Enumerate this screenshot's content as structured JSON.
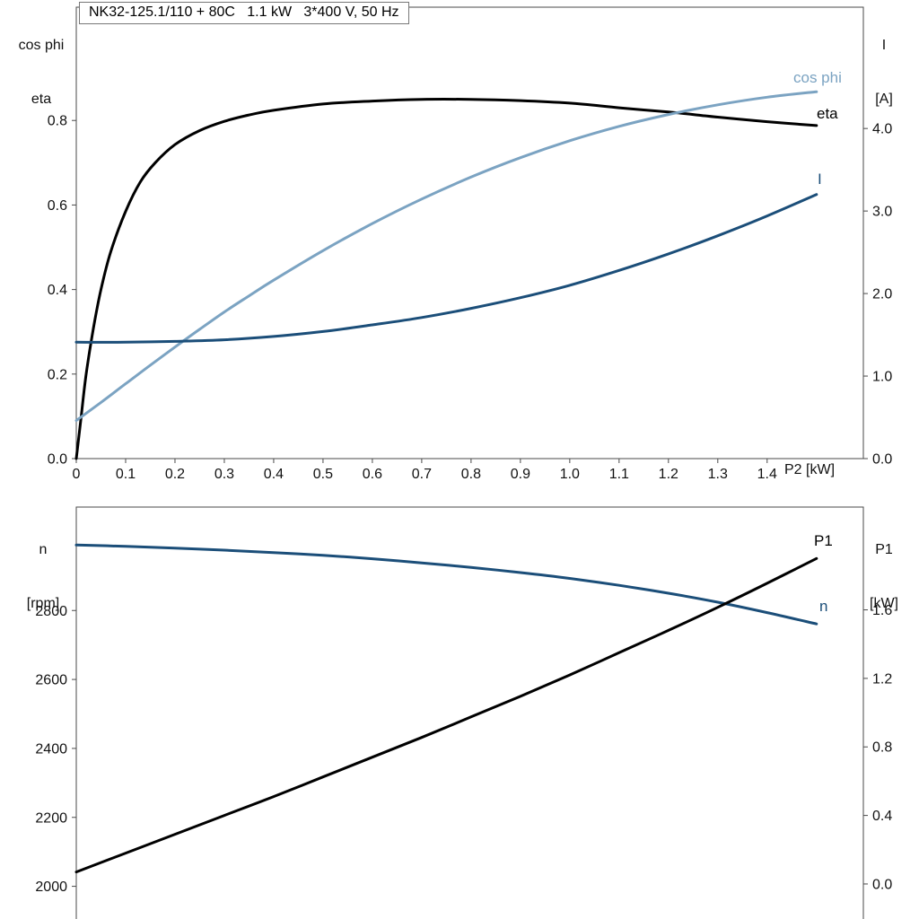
{
  "header": {
    "model_title": "NK32-125.1/110 + 80C   1.1 kW   3*400 V, 50 Hz"
  },
  "colors": {
    "black": "#000000",
    "dark_blue": "#1b4e79",
    "light_blue": "#7ba3c2",
    "frame": "#4a4a4a"
  },
  "chart_data": [
    {
      "type": "line",
      "name": "motor-electrical",
      "title": "",
      "grid": false,
      "legend_position": "curve-end-labels",
      "x_axis": {
        "label": "P2 [kW]",
        "range": [
          0,
          1.595
        ],
        "ticks": [
          {
            "v": 0,
            "label": "0"
          },
          {
            "v": 0.1,
            "label": "0.1"
          },
          {
            "v": 0.2,
            "label": "0.2"
          },
          {
            "v": 0.3,
            "label": "0.3"
          },
          {
            "v": 0.4,
            "label": "0.4"
          },
          {
            "v": 0.5,
            "label": "0.5"
          },
          {
            "v": 0.6,
            "label": "0.6"
          },
          {
            "v": 0.7,
            "label": "0.7"
          },
          {
            "v": 0.8,
            "label": "0.8"
          },
          {
            "v": 0.9,
            "label": "0.9"
          },
          {
            "v": 1.0,
            "label": "1.0"
          },
          {
            "v": 1.1,
            "label": "1.1"
          },
          {
            "v": 1.2,
            "label": "1.2"
          },
          {
            "v": 1.3,
            "label": "1.3"
          },
          {
            "v": 1.4,
            "label": "1.4"
          }
        ]
      },
      "left_axis": {
        "title_lines": [
          "cos phi",
          "eta"
        ],
        "range": [
          0,
          1.068
        ],
        "ticks": [
          {
            "v": 0.0,
            "label": "0.0"
          },
          {
            "v": 0.2,
            "label": "0.2"
          },
          {
            "v": 0.4,
            "label": "0.4"
          },
          {
            "v": 0.6,
            "label": "0.6"
          },
          {
            "v": 0.8,
            "label": "0.8"
          }
        ]
      },
      "right_axis": {
        "title_lines": [
          "I",
          "[A]"
        ],
        "range": [
          0,
          5.47
        ],
        "ticks": [
          {
            "v": 0.0,
            "label": "0.0"
          },
          {
            "v": 1.0,
            "label": "1.0"
          },
          {
            "v": 2.0,
            "label": "2.0"
          },
          {
            "v": 3.0,
            "label": "3.0"
          },
          {
            "v": 4.0,
            "label": "4.0"
          }
        ]
      },
      "series": [
        {
          "name": "eta",
          "label": "eta",
          "axis": "left",
          "color_key": "black",
          "x": [
            0,
            0.01,
            0.02,
            0.035,
            0.05,
            0.07,
            0.1,
            0.13,
            0.16,
            0.2,
            0.25,
            0.3,
            0.35,
            0.4,
            0.5,
            0.6,
            0.7,
            0.8,
            0.9,
            1.0,
            1.1,
            1.2,
            1.3,
            1.4,
            1.5
          ],
          "y": [
            0,
            0.1,
            0.2,
            0.31,
            0.4,
            0.49,
            0.585,
            0.655,
            0.7,
            0.743,
            0.776,
            0.798,
            0.813,
            0.824,
            0.839,
            0.846,
            0.85,
            0.85,
            0.847,
            0.841,
            0.83,
            0.82,
            0.808,
            0.797,
            0.788
          ]
        },
        {
          "name": "cos-phi",
          "label": "cos phi",
          "axis": "left",
          "color_key": "light_blue",
          "x": [
            0,
            0.05,
            0.1,
            0.15,
            0.2,
            0.25,
            0.3,
            0.35,
            0.4,
            0.5,
            0.6,
            0.7,
            0.8,
            0.9,
            1.0,
            1.1,
            1.2,
            1.3,
            1.4,
            1.5
          ],
          "y": [
            0.09,
            0.133,
            0.177,
            0.221,
            0.264,
            0.306,
            0.347,
            0.385,
            0.422,
            0.492,
            0.556,
            0.614,
            0.666,
            0.712,
            0.752,
            0.786,
            0.814,
            0.837,
            0.855,
            0.868
          ]
        },
        {
          "name": "current",
          "label": "I",
          "axis": "right",
          "color_key": "dark_blue",
          "x": [
            0,
            0.1,
            0.2,
            0.3,
            0.4,
            0.5,
            0.6,
            0.7,
            0.8,
            0.9,
            1.0,
            1.1,
            1.2,
            1.3,
            1.4,
            1.5
          ],
          "y": [
            1.41,
            1.41,
            1.42,
            1.44,
            1.48,
            1.54,
            1.62,
            1.71,
            1.82,
            1.95,
            2.1,
            2.28,
            2.48,
            2.7,
            2.94,
            3.2
          ]
        }
      ]
    },
    {
      "type": "line",
      "name": "motor-mechanical",
      "title": "",
      "grid": false,
      "legend_position": "curve-end-labels",
      "x_axis": {
        "label": "",
        "range": [
          0,
          1.595
        ],
        "ticks": []
      },
      "left_axis": {
        "title_lines": [
          "n",
          "[rpm]"
        ],
        "range": [
          1900,
          3100
        ],
        "ticks": [
          {
            "v": 2000,
            "label": "2000"
          },
          {
            "v": 2200,
            "label": "2200"
          },
          {
            "v": 2400,
            "label": "2400"
          },
          {
            "v": 2600,
            "label": "2600"
          },
          {
            "v": 2800,
            "label": "2800"
          }
        ]
      },
      "right_axis": {
        "title_lines": [
          "P1",
          "[kW]"
        ],
        "range": [
          -0.215,
          2.2
        ],
        "ticks": [
          {
            "v": 0.0,
            "label": "0.0"
          },
          {
            "v": 0.4,
            "label": "0.4"
          },
          {
            "v": 0.8,
            "label": "0.8"
          },
          {
            "v": 1.2,
            "label": "1.2"
          },
          {
            "v": 1.6,
            "label": "1.6"
          }
        ]
      },
      "series": [
        {
          "name": "speed",
          "label": "n",
          "axis": "left",
          "color_key": "dark_blue",
          "x": [
            0,
            0.1,
            0.2,
            0.3,
            0.4,
            0.5,
            0.6,
            0.7,
            0.8,
            0.9,
            1.0,
            1.1,
            1.2,
            1.3,
            1.4,
            1.5
          ],
          "y": [
            2990,
            2986,
            2981,
            2975,
            2968,
            2960,
            2950,
            2938,
            2925,
            2910,
            2893,
            2873,
            2850,
            2824,
            2794,
            2761
          ]
        },
        {
          "name": "p1-power",
          "label": "P1",
          "axis": "right",
          "color_key": "black",
          "x": [
            0,
            0.1,
            0.2,
            0.3,
            0.4,
            0.5,
            0.6,
            0.7,
            0.8,
            0.9,
            1.0,
            1.1,
            1.2,
            1.3,
            1.4,
            1.5
          ],
          "y": [
            0.07,
            0.18,
            0.29,
            0.4,
            0.51,
            0.625,
            0.74,
            0.855,
            0.975,
            1.095,
            1.22,
            1.35,
            1.48,
            1.615,
            1.755,
            1.9
          ]
        }
      ]
    }
  ]
}
